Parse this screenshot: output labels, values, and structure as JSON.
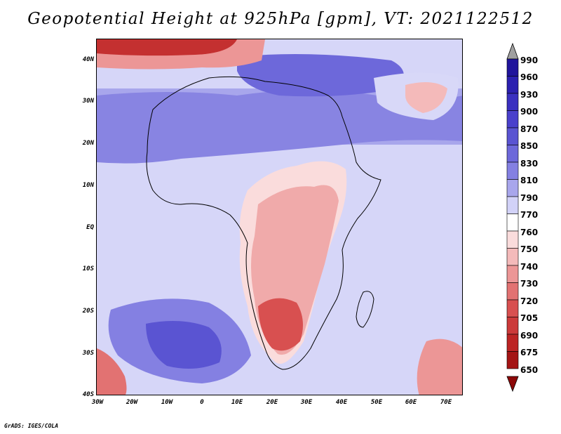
{
  "title": "Geopotential Height at 925hPa [gpm], VT: 2021122512",
  "credit": "GrADS: IGES/COLA",
  "lat_labels": [
    "40N",
    "30N",
    "20N",
    "10N",
    "EQ",
    "10S",
    "20S",
    "30S",
    "40S"
  ],
  "lon_labels": [
    "30W",
    "20W",
    "10W",
    "0",
    "10E",
    "20E",
    "30E",
    "40E",
    "50E",
    "60E",
    "70E"
  ],
  "colorbar": {
    "levels": [
      "990",
      "960",
      "930",
      "900",
      "870",
      "850",
      "830",
      "810",
      "790",
      "770",
      "760",
      "750",
      "740",
      "730",
      "720",
      "705",
      "690",
      "675",
      "650"
    ],
    "colors": [
      "#a0a0a0",
      "#20149c",
      "#2b20b0",
      "#3a30c0",
      "#4a40cc",
      "#5a54d2",
      "#6d68da",
      "#8480e2",
      "#a8a6ec",
      "#d2d2f8",
      "#ffffff",
      "#fadcdc",
      "#f4baba",
      "#ec9696",
      "#e27272",
      "#d85050",
      "#cc3a3a",
      "#bc2424",
      "#a41414",
      "#8c0808"
    ]
  }
}
